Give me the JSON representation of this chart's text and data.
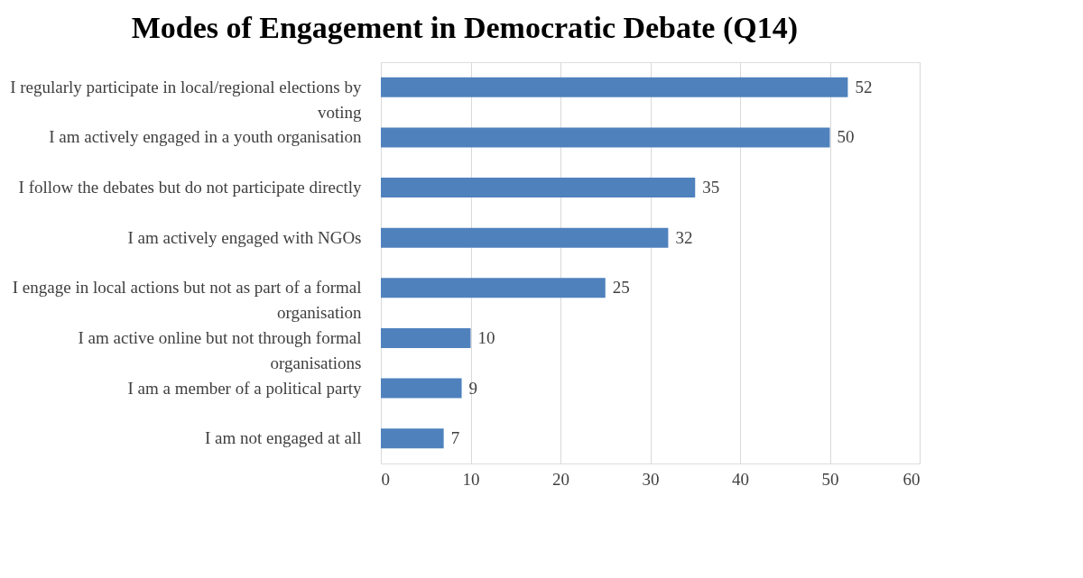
{
  "chart_data": {
    "type": "bar",
    "orientation": "horizontal",
    "title": "Modes of Engagement in Democratic Debate (Q14)",
    "categories": [
      "I regularly participate in local/regional elections by voting",
      "I am actively engaged in a youth organisation",
      "I follow the debates but do not participate directly",
      "I am actively engaged with NGOs",
      "I engage in local actions but not as part of a formal organisation",
      "I am active online but not through formal organisations",
      "I am a member of a political party",
      "I am not engaged at all"
    ],
    "values": [
      52,
      50,
      35,
      32,
      25,
      10,
      9,
      7
    ],
    "color": "#4f81bd",
    "xlim": [
      0,
      60
    ],
    "xticks": [
      0,
      10,
      20,
      30,
      40,
      50,
      60
    ],
    "grid": "x",
    "data_labels": true
  }
}
